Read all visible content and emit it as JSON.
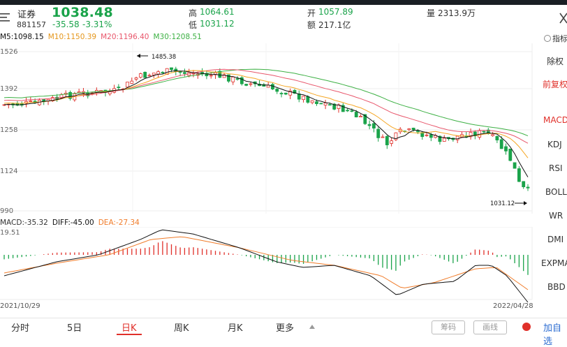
{
  "header": {
    "name": "证券",
    "code": "881157",
    "price": "1038.48",
    "change": "-35.58",
    "change_pct": "-3.31%",
    "high_label": "高",
    "high": "1064.61",
    "low_label": "低",
    "low": "1031.12",
    "open_label": "开",
    "open": "1057.89",
    "amount_label": "额",
    "amount": "217.1亿",
    "volume_label": "量",
    "volume": "2313.9万",
    "menu_icon": "menu-icon",
    "close_icon": "close-icon"
  },
  "legend": {
    "m5": "M5:1098.15",
    "m10": "M10:1150.39",
    "m20": "M20:1196.40",
    "m30": "M30:1208.51"
  },
  "colors": {
    "up": "#e0302a",
    "down": "#1aa34a",
    "m5": "#111111",
    "m10": "#f5a623",
    "m20": "#e8566b",
    "m30": "#3cb043",
    "diff": "#111111",
    "dea": "#f07c2a"
  },
  "main_axis": {
    "top": "1526",
    "l2": "1392",
    "l3": "1258",
    "l4": "1124",
    "bottom": "990"
  },
  "annotations": {
    "high": "1485.38",
    "low": "1031.12"
  },
  "macd_legend": {
    "macd": "MACD:-35.32",
    "diff": "DIFF:-45.00",
    "dea": "DEA:-27.34",
    "top": "19.51"
  },
  "dates": {
    "start": "2021/10/29",
    "end": "2022/04/28"
  },
  "side_panel": {
    "header": "指标",
    "items": [
      "除权",
      "前复权",
      "MACD",
      "KDJ",
      "RSI",
      "BOLL",
      "WR",
      "DMI",
      "EXPMA",
      "BBD"
    ]
  },
  "tabs": [
    "分时",
    "5日",
    "日K",
    "周K",
    "月K",
    "更多"
  ],
  "buttons": {
    "chips": "筹码",
    "draw": "画线",
    "add": "加自选"
  },
  "chart_data": {
    "type": "candlestick",
    "ylim": [
      990,
      1526
    ],
    "ma_values": {
      "M5": 1098.15,
      "M10": 1150.39,
      "M20": 1196.4,
      "M30": 1208.51
    },
    "period_high": 1485.38,
    "period_low": 1031.12,
    "last_close": 1038.48,
    "macd": {
      "MACD": -35.32,
      "DIFF": -45.0,
      "DEA": -27.34
    },
    "x_range": [
      "2021/10/29",
      "2022/04/28"
    ]
  }
}
